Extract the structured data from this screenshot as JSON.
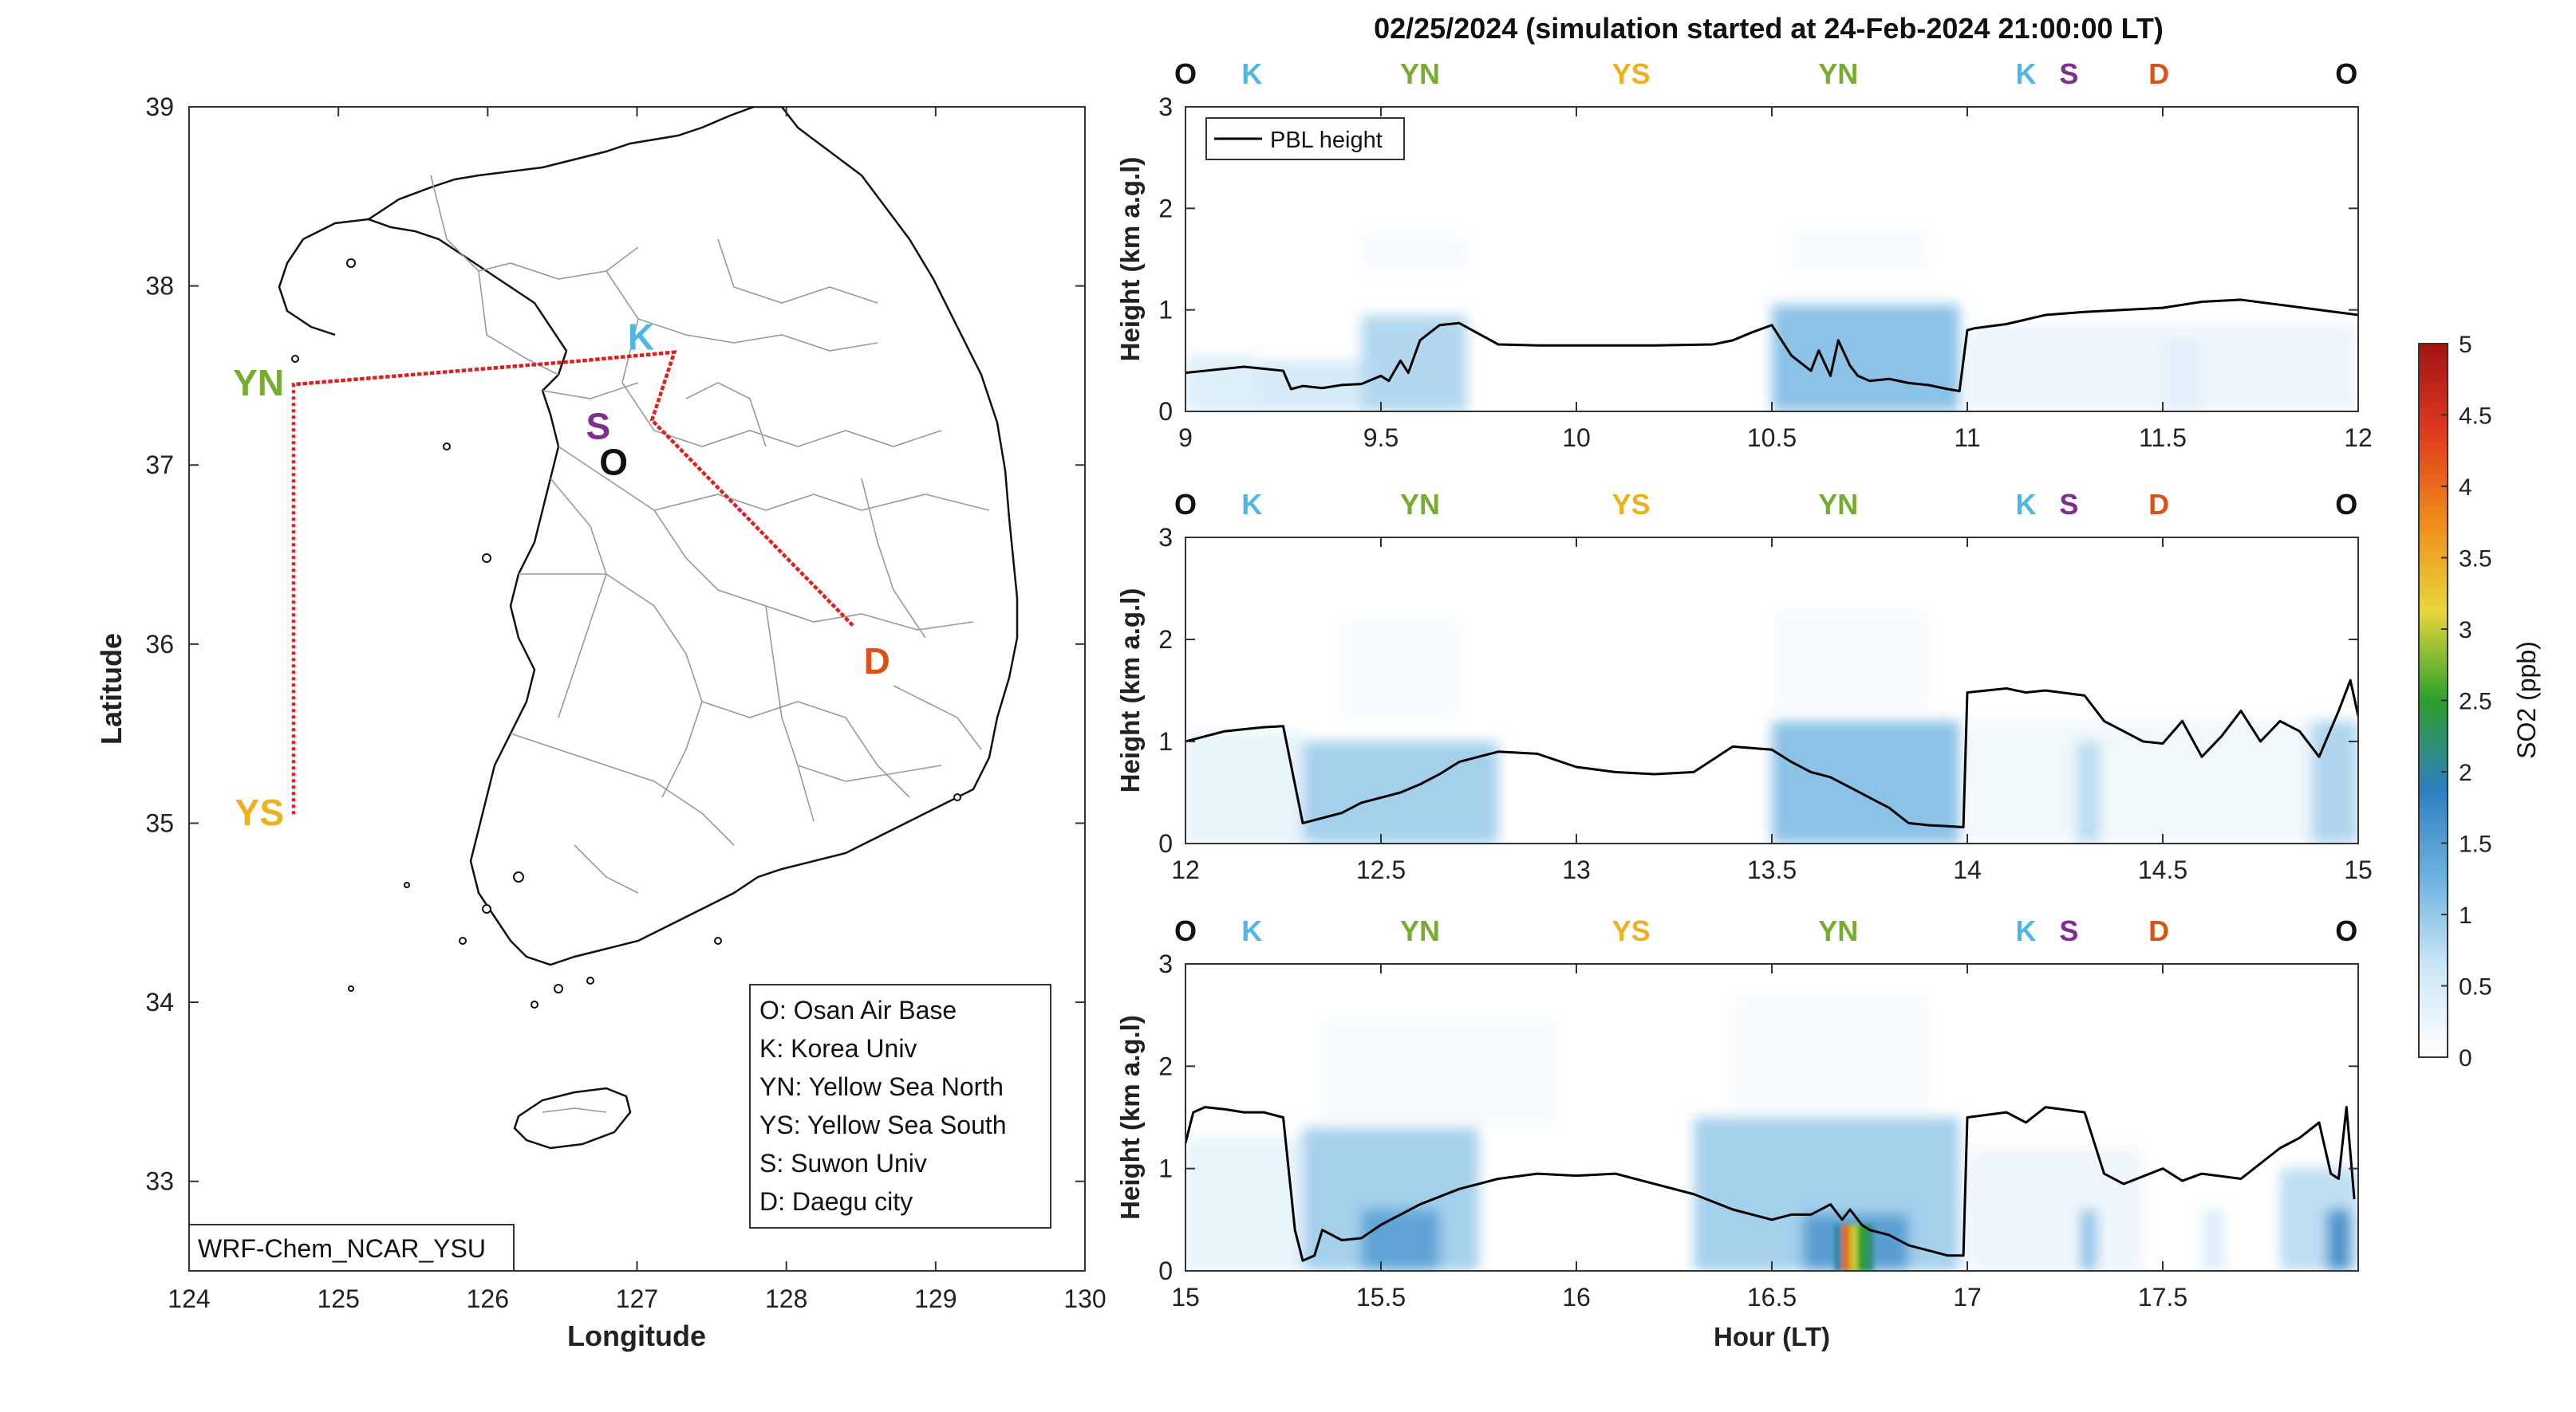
{
  "figure": {
    "title": "02/25/2024 (simulation started at 24-Feb-2024 21:00:00 LT)"
  },
  "colors": {
    "O": "#111111",
    "K": "#4db8e8",
    "YN": "#77ac30",
    "YS": "#edb120",
    "S": "#7e2f8e",
    "D": "#d95319",
    "flight_track": "#e0201c",
    "pbl": "#000000"
  },
  "chart_data": [
    {
      "type": "map",
      "xlabel": "Longitude",
      "ylabel": "Latitude",
      "xlim": [
        124,
        130
      ],
      "ylim": [
        32.5,
        39
      ],
      "xticks": [
        "124",
        "125",
        "126",
        "127",
        "128",
        "129",
        "130"
      ],
      "yticks": [
        "33",
        "34",
        "35",
        "36",
        "37",
        "38",
        "39"
      ],
      "grid": false,
      "sites": [
        {
          "key": "O",
          "label": "O",
          "lon": 126.95,
          "lat": 37.08
        },
        {
          "key": "K",
          "label": "K",
          "lon": 127.08,
          "lat": 37.6
        },
        {
          "key": "S",
          "label": "S",
          "lon": 126.9,
          "lat": 37.28
        },
        {
          "key": "D",
          "label": "D",
          "lon": 128.5,
          "lat": 35.96
        },
        {
          "key": "YN",
          "label": "YN",
          "lon": 124.55,
          "lat": 37.45
        },
        {
          "key": "YS",
          "label": "YS",
          "lon": 124.55,
          "lat": 35.05
        }
      ],
      "flight_track": {
        "lon": [
          124.7,
          124.7,
          126.6,
          127.25,
          127.1,
          128.45,
          127.1,
          127.25,
          126.6,
          124.7
        ],
        "lat": [
          35.05,
          37.45,
          37.58,
          37.63,
          37.25,
          36.1,
          37.25,
          37.63,
          37.58,
          37.45
        ]
      },
      "legend": {
        "placement": "bottom-right",
        "entries": [
          "O: Osan Air Base",
          "K: Korea Univ",
          "YN: Yellow Sea North",
          "YS: Yellow Sea South",
          "S: Suwon Univ",
          "D: Daegu city"
        ]
      },
      "model_label": "WRF-Chem_NCAR_YSU"
    },
    {
      "type": "heatmap",
      "panel": "top",
      "xlim": [
        9,
        12
      ],
      "ylim": [
        0,
        3
      ],
      "xticks": [
        "9",
        "9.5",
        "10",
        "10.5",
        "11",
        "11.5",
        "12"
      ],
      "yticks": [
        "0",
        "1",
        "2",
        "3"
      ],
      "ylabel": "Height (km a.g.l)",
      "xlabel": "",
      "legend": {
        "placement": "top-left",
        "entries": [
          "PBL height"
        ]
      },
      "site_sequence": [
        {
          "key": "O",
          "x": 9.0
        },
        {
          "key": "K",
          "x": 9.17
        },
        {
          "key": "YN",
          "x": 9.6
        },
        {
          "key": "YS",
          "x": 10.14
        },
        {
          "key": "YN",
          "x": 10.67
        },
        {
          "key": "K",
          "x": 11.15
        },
        {
          "key": "S",
          "x": 11.26
        },
        {
          "key": "D",
          "x": 11.49
        },
        {
          "key": "O",
          "x": 11.97
        }
      ],
      "pbl": {
        "x": [
          9.0,
          9.05,
          9.1,
          9.15,
          9.2,
          9.25,
          9.27,
          9.3,
          9.35,
          9.4,
          9.45,
          9.5,
          9.52,
          9.55,
          9.57,
          9.6,
          9.65,
          9.7,
          9.8,
          9.9,
          10.0,
          10.2,
          10.35,
          10.4,
          10.45,
          10.5,
          10.55,
          10.6,
          10.62,
          10.65,
          10.67,
          10.7,
          10.72,
          10.75,
          10.8,
          10.85,
          10.9,
          10.95,
          10.98,
          11.0,
          11.02,
          11.1,
          11.2,
          11.3,
          11.4,
          11.5,
          11.6,
          11.7,
          11.8,
          11.9,
          12.0
        ],
        "y": [
          0.38,
          0.4,
          0.42,
          0.44,
          0.42,
          0.4,
          0.22,
          0.25,
          0.23,
          0.26,
          0.27,
          0.35,
          0.3,
          0.5,
          0.38,
          0.7,
          0.85,
          0.87,
          0.66,
          0.65,
          0.65,
          0.65,
          0.66,
          0.7,
          0.78,
          0.85,
          0.55,
          0.4,
          0.6,
          0.35,
          0.7,
          0.45,
          0.35,
          0.3,
          0.32,
          0.28,
          0.26,
          0.22,
          0.2,
          0.8,
          0.82,
          0.86,
          0.95,
          0.98,
          1.0,
          1.02,
          1.08,
          1.1,
          1.05,
          1.0,
          0.95
        ]
      },
      "so2_blobs": [
        {
          "x0": 9.0,
          "x1": 9.18,
          "y0": 0.0,
          "y1": 0.55,
          "v": 0.5
        },
        {
          "x0": 9.18,
          "x1": 9.45,
          "y0": 0.0,
          "y1": 0.5,
          "v": 0.6
        },
        {
          "x0": 9.45,
          "x1": 9.72,
          "y0": 0.0,
          "y1": 0.95,
          "v": 0.9
        },
        {
          "x0": 9.45,
          "x1": 9.72,
          "y0": 1.4,
          "y1": 1.75,
          "v": 0.15
        },
        {
          "x0": 10.5,
          "x1": 10.98,
          "y0": 0.0,
          "y1": 1.05,
          "v": 1.2
        },
        {
          "x0": 10.55,
          "x1": 10.9,
          "y0": 1.4,
          "y1": 1.8,
          "v": 0.15
        },
        {
          "x0": 11.0,
          "x1": 12.0,
          "y0": 0.0,
          "y1": 0.85,
          "v": 0.25
        },
        {
          "x0": 11.5,
          "x1": 11.6,
          "y0": 0.0,
          "y1": 0.7,
          "v": 0.4
        }
      ]
    },
    {
      "type": "heatmap",
      "panel": "middle",
      "xlim": [
        12,
        15
      ],
      "ylim": [
        0,
        3
      ],
      "xticks": [
        "12",
        "12.5",
        "13",
        "13.5",
        "14",
        "14.5",
        "15"
      ],
      "yticks": [
        "0",
        "1",
        "2",
        "3"
      ],
      "ylabel": "Height (km a.g.l)",
      "xlabel": "",
      "site_sequence": [
        {
          "key": "O",
          "x": 12.0
        },
        {
          "key": "K",
          "x": 12.17
        },
        {
          "key": "YN",
          "x": 12.6
        },
        {
          "key": "YS",
          "x": 13.14
        },
        {
          "key": "YN",
          "x": 13.67
        },
        {
          "key": "K",
          "x": 14.15
        },
        {
          "key": "S",
          "x": 14.26
        },
        {
          "key": "D",
          "x": 14.49
        },
        {
          "key": "O",
          "x": 14.97
        }
      ],
      "pbl": {
        "x": [
          12.0,
          12.05,
          12.1,
          12.15,
          12.2,
          12.25,
          12.3,
          12.35,
          12.4,
          12.45,
          12.5,
          12.55,
          12.6,
          12.65,
          12.7,
          12.8,
          12.9,
          13.0,
          13.1,
          13.2,
          13.3,
          13.4,
          13.5,
          13.55,
          13.6,
          13.65,
          13.7,
          13.75,
          13.8,
          13.85,
          13.9,
          13.95,
          13.99,
          14.0,
          14.05,
          14.1,
          14.15,
          14.2,
          14.3,
          14.35,
          14.4,
          14.45,
          14.5,
          14.55,
          14.6,
          14.65,
          14.7,
          14.75,
          14.8,
          14.85,
          14.9,
          14.95,
          14.98,
          15.0
        ],
        "y": [
          1.0,
          1.05,
          1.1,
          1.12,
          1.14,
          1.15,
          0.2,
          0.25,
          0.3,
          0.4,
          0.45,
          0.5,
          0.58,
          0.68,
          0.8,
          0.9,
          0.88,
          0.75,
          0.7,
          0.68,
          0.7,
          0.95,
          0.92,
          0.8,
          0.7,
          0.65,
          0.55,
          0.45,
          0.35,
          0.2,
          0.18,
          0.17,
          0.16,
          1.48,
          1.5,
          1.52,
          1.48,
          1.5,
          1.45,
          1.2,
          1.1,
          1.0,
          0.98,
          1.2,
          0.85,
          1.05,
          1.3,
          1.0,
          1.2,
          1.1,
          0.85,
          1.3,
          1.6,
          1.25
        ]
      },
      "so2_blobs": [
        {
          "x0": 12.0,
          "x1": 12.3,
          "y0": 0.0,
          "y1": 1.1,
          "v": 0.35
        },
        {
          "x0": 12.3,
          "x1": 12.8,
          "y0": 0.0,
          "y1": 1.0,
          "v": 1.0
        },
        {
          "x0": 12.4,
          "x1": 12.7,
          "y0": 1.2,
          "y1": 2.2,
          "v": 0.12
        },
        {
          "x0": 13.5,
          "x1": 13.98,
          "y0": 0.0,
          "y1": 1.2,
          "v": 1.2
        },
        {
          "x0": 13.5,
          "x1": 13.9,
          "y0": 1.3,
          "y1": 2.3,
          "v": 0.12
        },
        {
          "x0": 14.0,
          "x1": 15.0,
          "y0": 0.0,
          "y1": 1.2,
          "v": 0.2
        },
        {
          "x0": 14.28,
          "x1": 14.34,
          "y0": 0.0,
          "y1": 1.0,
          "v": 0.8
        },
        {
          "x0": 14.88,
          "x1": 15.0,
          "y0": 0.0,
          "y1": 1.2,
          "v": 0.9
        }
      ]
    },
    {
      "type": "heatmap",
      "panel": "bottom",
      "xlim": [
        15,
        18
      ],
      "ylim": [
        0,
        3
      ],
      "xticks": [
        "15",
        "15.5",
        "16",
        "16.5",
        "17",
        "17.5"
      ],
      "yticks": [
        "0",
        "1",
        "2",
        "3"
      ],
      "ylabel": "Height (km a.g.l)",
      "xlabel": "Hour (LT)",
      "site_sequence": [
        {
          "key": "O",
          "x": 15.0
        },
        {
          "key": "K",
          "x": 15.17
        },
        {
          "key": "YN",
          "x": 15.6
        },
        {
          "key": "YS",
          "x": 16.14
        },
        {
          "key": "YN",
          "x": 16.67
        },
        {
          "key": "K",
          "x": 17.15
        },
        {
          "key": "S",
          "x": 17.26
        },
        {
          "key": "D",
          "x": 17.49
        },
        {
          "key": "O",
          "x": 17.97
        }
      ],
      "pbl": {
        "x": [
          15.0,
          15.02,
          15.05,
          15.1,
          15.15,
          15.2,
          15.25,
          15.28,
          15.3,
          15.33,
          15.35,
          15.4,
          15.45,
          15.5,
          15.55,
          15.6,
          15.7,
          15.8,
          15.9,
          16.0,
          16.1,
          16.2,
          16.3,
          16.4,
          16.5,
          16.55,
          16.6,
          16.65,
          16.68,
          16.7,
          16.73,
          16.75,
          16.8,
          16.85,
          16.9,
          16.95,
          16.99,
          17.0,
          17.1,
          17.15,
          17.2,
          17.3,
          17.35,
          17.4,
          17.5,
          17.55,
          17.6,
          17.7,
          17.8,
          17.85,
          17.9,
          17.93,
          17.95,
          17.97,
          17.99
        ],
        "y": [
          1.25,
          1.55,
          1.6,
          1.58,
          1.55,
          1.55,
          1.5,
          0.4,
          0.1,
          0.15,
          0.4,
          0.3,
          0.32,
          0.45,
          0.55,
          0.65,
          0.8,
          0.9,
          0.95,
          0.93,
          0.95,
          0.85,
          0.75,
          0.6,
          0.5,
          0.55,
          0.55,
          0.65,
          0.5,
          0.6,
          0.45,
          0.4,
          0.35,
          0.25,
          0.2,
          0.15,
          0.15,
          1.5,
          1.55,
          1.45,
          1.6,
          1.55,
          0.95,
          0.85,
          1.0,
          0.88,
          0.95,
          0.9,
          1.2,
          1.3,
          1.45,
          0.95,
          0.9,
          1.6,
          0.7
        ]
      },
      "so2_blobs": [
        {
          "x0": 15.0,
          "x1": 15.3,
          "y0": 0.0,
          "y1": 1.3,
          "v": 0.35
        },
        {
          "x0": 15.3,
          "x1": 15.75,
          "y0": 0.0,
          "y1": 1.4,
          "v": 1.0
        },
        {
          "x0": 15.45,
          "x1": 15.65,
          "y0": 0.0,
          "y1": 0.6,
          "v": 1.5
        },
        {
          "x0": 15.35,
          "x1": 15.95,
          "y0": 1.4,
          "y1": 2.5,
          "v": 0.12
        },
        {
          "x0": 16.3,
          "x1": 16.98,
          "y0": 0.0,
          "y1": 1.5,
          "v": 1.0
        },
        {
          "x0": 16.58,
          "x1": 16.85,
          "y0": 0.0,
          "y1": 0.55,
          "v": 1.6
        },
        {
          "x0": 16.4,
          "x1": 16.9,
          "y0": 1.5,
          "y1": 2.7,
          "v": 0.12
        },
        {
          "x0": 17.0,
          "x1": 17.45,
          "y0": 0.0,
          "y1": 1.2,
          "v": 0.25
        },
        {
          "x0": 17.29,
          "x1": 17.33,
          "y0": 0.0,
          "y1": 0.6,
          "v": 1.2
        },
        {
          "x0": 17.6,
          "x1": 17.66,
          "y0": 0.0,
          "y1": 0.6,
          "v": 0.5
        },
        {
          "x0": 17.8,
          "x1": 18.0,
          "y0": 0.0,
          "y1": 1.0,
          "v": 0.8
        },
        {
          "x0": 17.92,
          "x1": 17.98,
          "y0": 0.0,
          "y1": 0.6,
          "v": 1.8
        }
      ],
      "so2_hotspots": [
        {
          "x0": 16.66,
          "x1": 16.68,
          "y0": 0.0,
          "y1": 0.45,
          "v": 2.0
        },
        {
          "x0": 16.68,
          "x1": 16.7,
          "y0": 0.0,
          "y1": 0.45,
          "v": 4.0
        },
        {
          "x0": 16.7,
          "x1": 16.72,
          "y0": 0.0,
          "y1": 0.45,
          "v": 3.0
        },
        {
          "x0": 16.72,
          "x1": 16.74,
          "y0": 0.0,
          "y1": 0.45,
          "v": 2.5
        },
        {
          "x0": 16.74,
          "x1": 16.76,
          "y0": 0.0,
          "y1": 0.45,
          "v": 2.2
        }
      ]
    },
    {
      "type": "colorbar",
      "label": "SO2 (ppb)",
      "range": [
        0,
        5
      ],
      "ticks": [
        "0",
        "0.5",
        "1",
        "1.5",
        "2",
        "2.5",
        "3",
        "3.5",
        "4",
        "4.5",
        "5"
      ],
      "stops": [
        "#ffffff",
        "#cde7f6",
        "#6fb3e0",
        "#2e7fc0",
        "#2ca02c",
        "#e8d63a",
        "#f08c1a",
        "#e03a1e",
        "#a11414"
      ]
    }
  ]
}
